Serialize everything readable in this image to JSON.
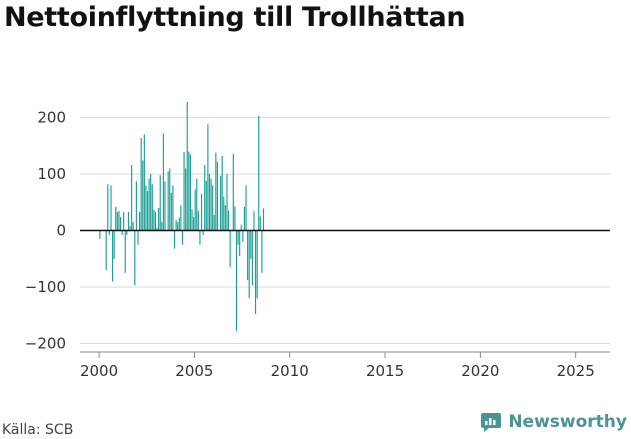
{
  "title": "Nettoinflyttning till Trollhättan",
  "source": "Källa: SCB",
  "brand": {
    "name": "Newsworthy",
    "icon": "newsworthy-logo-icon",
    "color": "#4a9494"
  },
  "colors": {
    "bar": "#1a9e96",
    "grid": "#d9d9d9",
    "zero": "#111111",
    "axis": "#888888"
  },
  "chart_data": {
    "type": "bar",
    "title": "Nettoinflyttning till Trollhättan",
    "xlabel": "",
    "ylabel": "",
    "xlim": [
      1999.0,
      2026.8
    ],
    "ylim": [
      -215,
      240
    ],
    "grid": true,
    "x_ticks": [
      2000,
      2005,
      2010,
      2015,
      2020,
      2025
    ],
    "y_ticks": [
      -200,
      -100,
      0,
      100,
      200
    ],
    "frequency": "monthly",
    "first_period": "2000-01",
    "values": [
      -15,
      0,
      0,
      0,
      -70,
      82,
      -8,
      80,
      -90,
      -50,
      42,
      33,
      35,
      24,
      -8,
      33,
      -75,
      -8,
      33,
      8,
      116,
      15,
      -97,
      87,
      -25,
      33,
      164,
      124,
      170,
      80,
      70,
      92,
      100,
      82,
      37,
      33,
      5,
      40,
      98,
      15,
      172,
      87,
      0,
      105,
      110,
      67,
      80,
      -32,
      19,
      15,
      23,
      45,
      -25,
      139,
      110,
      228,
      140,
      135,
      38,
      24,
      73,
      92,
      35,
      -25,
      65,
      -8,
      116,
      88,
      188,
      100,
      92,
      80,
      28,
      138,
      122,
      0,
      97,
      132,
      60,
      45,
      100,
      35,
      -65,
      0,
      136,
      43,
      -178,
      -25,
      -45,
      10,
      -20,
      42,
      80,
      -88,
      -120,
      -50,
      -97,
      34,
      -148,
      -120,
      203,
      25,
      -75,
      39
    ]
  }
}
